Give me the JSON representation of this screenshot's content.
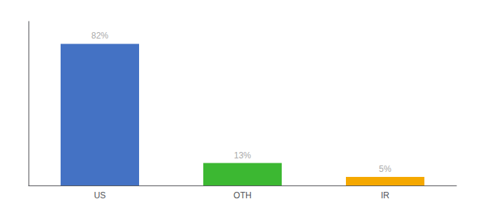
{
  "chart_data": {
    "type": "bar",
    "categories": [
      "US",
      "OTH",
      "IR"
    ],
    "values": [
      82,
      13,
      5
    ],
    "value_labels": [
      "82%",
      "13%",
      "5%"
    ],
    "data_labels": true,
    "colors": [
      "#4472c4",
      "#3cb832",
      "#f5a800"
    ],
    "ylim": [
      0,
      95
    ],
    "grid": false,
    "tick_labels": "x"
  }
}
